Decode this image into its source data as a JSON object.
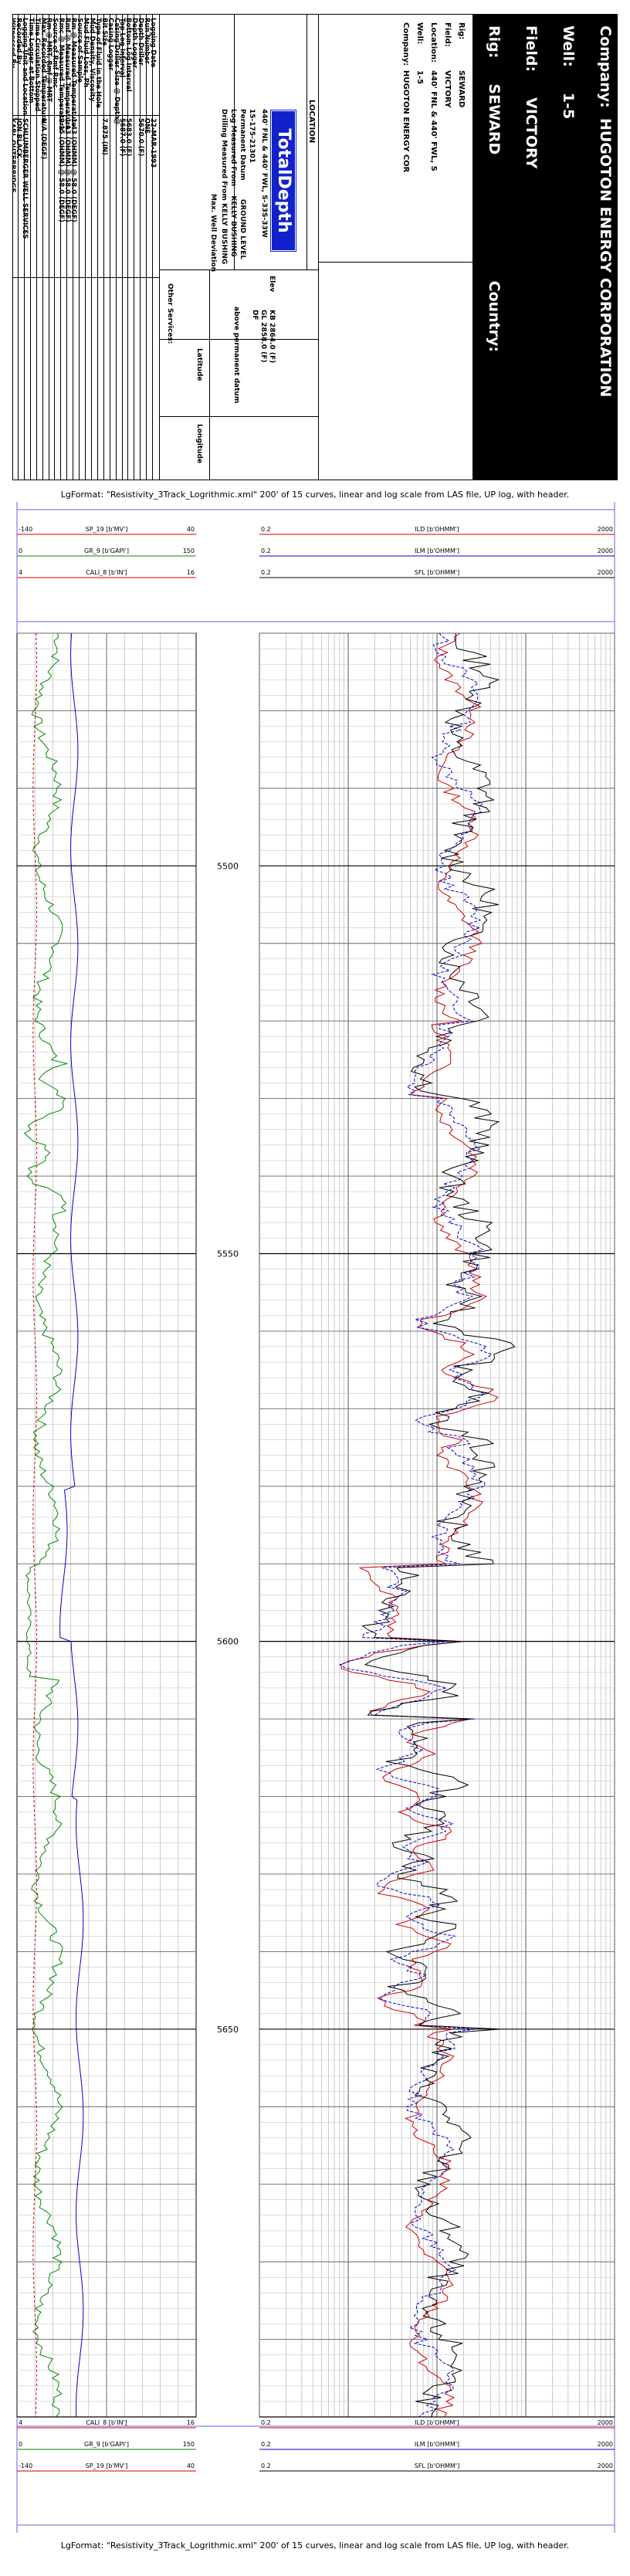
{
  "company": "HUGOTON ENERGY CORPORATION",
  "company_label": "Company:",
  "well_label": "Well:",
  "well": "1-5",
  "field_label": "Field:",
  "field": "VICTORY",
  "rig_label": "Rig:",
  "rig": "SEWARD",
  "country_label": "Country:",
  "info_rows": [
    {
      "label": "Rig:",
      "value": "SEWARD"
    },
    {
      "label": "Field:",
      "value": "VICTORY"
    },
    {
      "label": "Location:",
      "value": "440' FNL & 440' FWL, S"
    },
    {
      "label": "Well:",
      "value": "1-5"
    },
    {
      "label": "Company:",
      "value": "HUGOTON ENERGY COR"
    }
  ],
  "location_title": "LOCATION",
  "logo_text": "TotalDepth",
  "location_line": "440' FNL & 440' FWL, S-33S-33W",
  "api_line": "15-175-21301",
  "elev_label": "Elev",
  "elev_values": [
    "KB  2864.0 (F)",
    "GL  2858.0 (F)",
    "DF"
  ],
  "perm_datum_label": "Permanent Datum",
  "perm_datum_value": "GROUND LEVEL",
  "log_measured_label": "Log Measured From",
  "log_measured_value": "KELLY BUSHING",
  "drilling_measured_label": "Drilling Measured From",
  "drilling_measured_value": "KELLY BUSHING",
  "above_datum": "above permanent datum",
  "max_well_dev": "Max. Well Deviation",
  "latitude": "Latitude",
  "longitude": "Longitude",
  "other_services": "Other Services:",
  "params": [
    {
      "label": "Logging Date",
      "value": "22-MAR-1993"
    },
    {
      "label": "Run Number",
      "value": "ONE"
    },
    {
      "label": "Depth Driller",
      "value": "5670.0 (F)"
    },
    {
      "label": "Depth Logger",
      "value": ""
    },
    {
      "label": "Bottom Log Interval",
      "value": "5683.0 (F)"
    },
    {
      "label": "Top Log Interval",
      "value": "5687.0 (F)"
    },
    {
      "label": "Casing Driller Size @ Depth",
      "value": "@"
    },
    {
      "label": "Casing Logger",
      "value": ""
    },
    {
      "label": "Bit Size",
      "value": "7.875 (IN)"
    },
    {
      "label": "Type of Fluid in the Hole",
      "value": ""
    },
    {
      "label": "Mud Density, Viscosity",
      "value": ""
    },
    {
      "label": "Mud Fluid Loss, Ph",
      "value": ""
    },
    {
      "label": "Source of Sample",
      "value": ""
    },
    {
      "label": "Rm @ Measured Temperature",
      "value": "1.43 (OHMM)  @  58.0 (DEGF)"
    },
    {
      "label": "Rmf @ Measured Temperature",
      "value": "1.13 (OHMM)  @  58.0 (DEGF)"
    },
    {
      "label": "Rmc @ Measured Temperature",
      "value": "2.15 (OHMM)  @  58.0 (DEGF)"
    },
    {
      "label": "Source of Rmf Rmc",
      "value": ""
    },
    {
      "label": "Rm @ MRT, Rmf @ MRT",
      "value": ""
    },
    {
      "label": "Max. Recorded Temperature",
      "value": "N/A (DEGF)"
    },
    {
      "label": "Time Circulation Stopped",
      "value": ""
    },
    {
      "label": "Time Logger at Bottom",
      "value": ""
    },
    {
      "label": "Logging Unit and Location",
      "value": "SCHLUMBERGER WELL SERVICES"
    },
    {
      "label": "Recorded By",
      "value": "JON BLACK"
    },
    {
      "label": "Witnessed By",
      "value": "KARL OUTERBRIDGE"
    }
  ],
  "lgformat_caption": "LgFormat: \"Resistivity_3Track_Logrithmic.xml\" 200' of 15 curves, linear and log scale from LAS file, UP log, with header.",
  "track1_scales": [
    {
      "min": "-140",
      "curve": "SP_19 [b'MV']",
      "max": "40",
      "color": "#cc0000"
    },
    {
      "min": "0",
      "curve": "GR_9 [b'GAPI']",
      "max": "150",
      "color": "#008800"
    },
    {
      "min": "4",
      "curve": "CALI_8 [b'IN']",
      "max": "16",
      "color": "#cc0000"
    }
  ],
  "track3_scales": [
    {
      "min": "0.2",
      "curve": "ILD [b'OHMM']",
      "max": "2000",
      "color": "#cc0000"
    },
    {
      "min": "0.2",
      "curve": "ILM [b'OHMM']",
      "max": "2000",
      "color": "#0000cc"
    },
    {
      "min": "0.2",
      "curve": "SFL [b'OHMM']",
      "max": "2000",
      "color": "#000000"
    }
  ],
  "track1_scales_bottom": [
    {
      "min": "4",
      "curve": "CALI_8 [b'IN']",
      "max": "16",
      "color": "#cc0000"
    },
    {
      "min": "0",
      "curve": "GR_9 [b'GAPI']",
      "max": "150",
      "color": "#008800"
    },
    {
      "min": "-140",
      "curve": "SP_19 [b'MV']",
      "max": "40",
      "color": "#cc0000"
    }
  ],
  "track3_scales_bottom": [
    {
      "min": "0.2",
      "curve": "ILD [b'OHMM']",
      "max": "2000",
      "color": "#cc0000"
    },
    {
      "min": "0.2",
      "curve": "ILM [b'OHMM']",
      "max": "2000",
      "color": "#0000cc"
    },
    {
      "min": "0.2",
      "curve": "SFL [b'OHMM']",
      "max": "2000",
      "color": "#000000"
    }
  ],
  "depth_labels": [
    "5500",
    "5550",
    "5600",
    "5650"
  ]
}
